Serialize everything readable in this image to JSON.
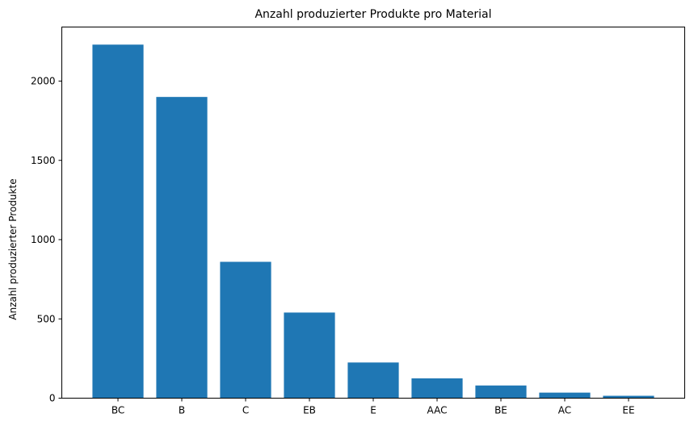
{
  "chart_data": {
    "type": "bar",
    "title": "Anzahl produzierter Produkte pro Material",
    "xlabel": "",
    "ylabel": "Anzahl produzierter Produkte",
    "categories": [
      "BC",
      "B",
      "C",
      "EB",
      "E",
      "AAC",
      "BE",
      "AC",
      "EE"
    ],
    "values": [
      2230,
      1900,
      860,
      540,
      225,
      125,
      80,
      35,
      15
    ],
    "ylim": [
      0,
      2341
    ],
    "yticks": [
      0,
      500,
      1000,
      1500,
      2000
    ],
    "grid": false,
    "legend": "none",
    "bar_color": "#1f77b4"
  }
}
